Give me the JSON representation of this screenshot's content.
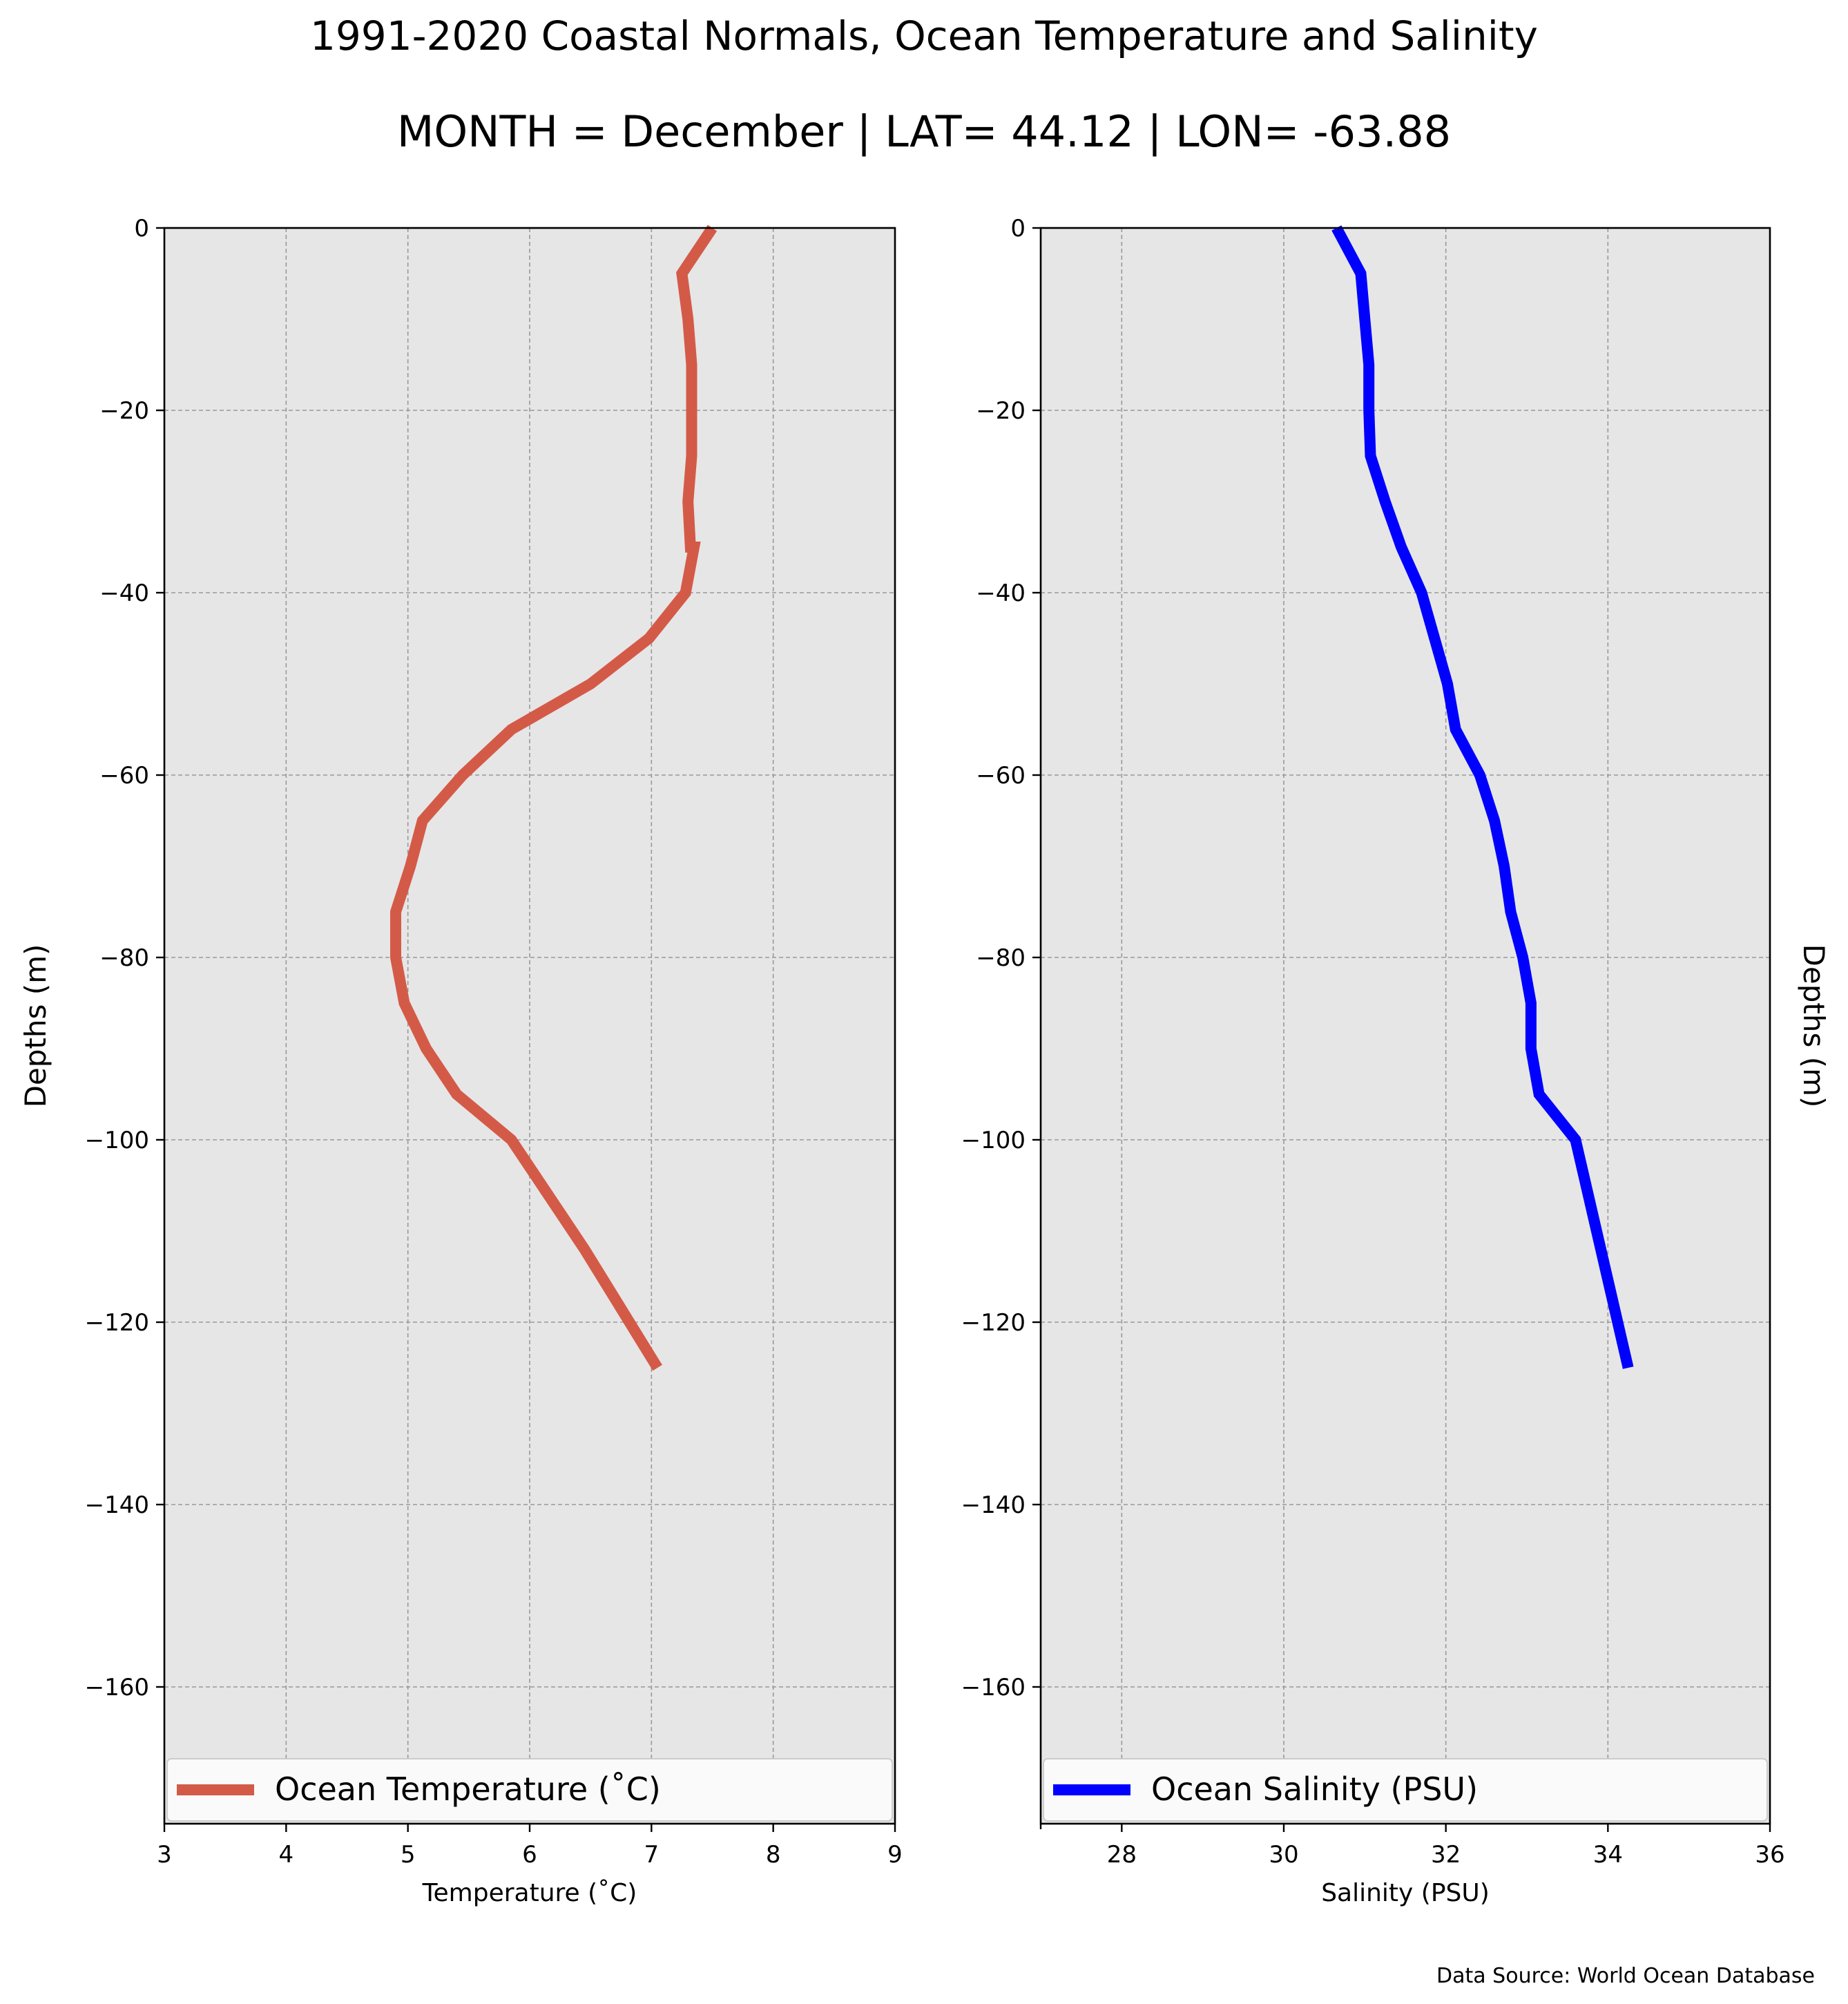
{
  "figure": {
    "title": "1991-2020 Coastal Normals, Ocean Temperature and Salinity",
    "subtitle": "MONTH = December | LAT= 44.12 | LON= -63.88",
    "source": "Data Source: World Ocean Database"
  },
  "chart_data": [
    {
      "type": "line",
      "xlabel": "Temperature ($^\\circ$C)",
      "ylabel": "Depths (m)",
      "xlim": [
        3,
        9
      ],
      "ylim": [
        -175,
        0
      ],
      "xticks": [
        3,
        4,
        5,
        6,
        7,
        8,
        9
      ],
      "yticks": [
        0,
        -20,
        -40,
        -60,
        -80,
        -100,
        -120,
        -140,
        -160
      ],
      "grid": true,
      "legend_position": "bottom",
      "background": "#e6e6e6",
      "series": [
        {
          "name": "Ocean Temperature ($^\\circ$C)",
          "color": "#d45a48",
          "x": [
            7.5,
            7.25,
            7.3,
            7.33,
            7.33,
            7.33,
            7.3,
            7.32,
            7.35,
            7.28,
            6.98,
            6.5,
            5.85,
            5.45,
            5.12,
            5.02,
            4.9,
            4.9,
            4.97,
            5.15,
            5.4,
            5.85,
            6.45,
            7.05
          ],
          "y": [
            0,
            -5,
            -10,
            -15,
            -20,
            -25,
            -30,
            -35,
            -35,
            -40,
            -45,
            -50,
            -55,
            -60,
            -65,
            -70,
            -75,
            -80,
            -85,
            -90,
            -95,
            -100,
            -112,
            -125
          ]
        }
      ]
    },
    {
      "type": "line",
      "xlabel": "Salinity (PSU)",
      "ylabel": "Depths (m)",
      "xlim": [
        27,
        36
      ],
      "ylim": [
        -175,
        0
      ],
      "xticks": [
        28,
        30,
        32,
        34,
        36
      ],
      "yticks": [
        0,
        -20,
        -40,
        -60,
        -80,
        -100,
        -120,
        -140,
        -160
      ],
      "grid": true,
      "legend_position": "bottom",
      "background": "#e6e6e6",
      "series": [
        {
          "name": "Ocean Salinity (PSU)",
          "color": "#0000ff",
          "x": [
            30.65,
            30.95,
            31.0,
            31.05,
            31.05,
            31.07,
            31.25,
            31.45,
            31.7,
            32.02,
            32.12,
            32.42,
            32.6,
            32.72,
            32.8,
            32.95,
            33.05,
            33.05,
            33.15,
            33.6,
            34.25
          ],
          "y": [
            0,
            -5,
            -10,
            -15,
            -20,
            -25,
            -30,
            -35,
            -40,
            -50,
            -55,
            -60,
            -65,
            -70,
            -75,
            -80,
            -85,
            -90,
            -95,
            -100,
            -125
          ]
        }
      ]
    }
  ]
}
